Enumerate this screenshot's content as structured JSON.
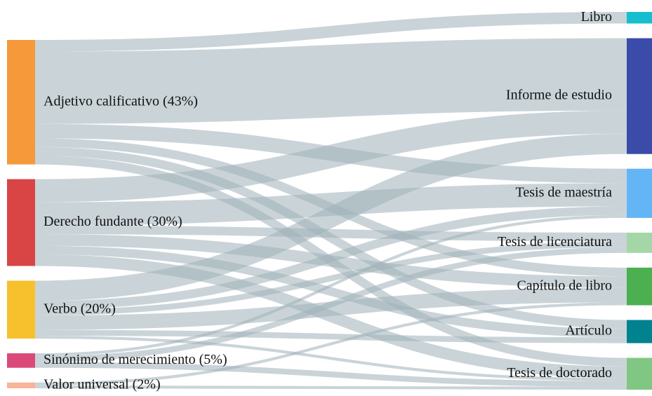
{
  "chart_data": {
    "type": "sankey",
    "nodes": [
      {
        "label": "Adjetivo calificativo (43%)",
        "color": "#f5993a",
        "column": 0
      },
      {
        "label": "Derecho fundante  (30%)",
        "color": "#d94545",
        "column": 0
      },
      {
        "label": "Verbo (20%)",
        "color": "#f7c12e",
        "column": 0
      },
      {
        "label": "Sinónimo de merecimiento (5%)",
        "color": "#d94a78",
        "column": 0
      },
      {
        "label": "Valor universal (2%)",
        "color": "#f9b39a",
        "column": 0
      },
      {
        "label": "Libro",
        "color": "#17becf",
        "column": 1
      },
      {
        "label": "Informe de estudio",
        "color": "#3a4baa",
        "column": 1
      },
      {
        "label": "Tesis de maestría",
        "color": "#64b5f6",
        "column": 1
      },
      {
        "label": "Tesis de licenciatura",
        "color": "#a5d6a7",
        "column": 1
      },
      {
        "label": "Capítulo de libro",
        "color": "#4caf50",
        "column": 1
      },
      {
        "label": "Artículo",
        "color": "#00838f",
        "column": 1
      },
      {
        "label": "Tesis de doctorado",
        "color": "#81c784",
        "column": 1
      }
    ],
    "link_color": "#9fb0b8",
    "links": [
      {
        "source": 0,
        "target": 5,
        "value": 4
      },
      {
        "source": 0,
        "target": 6,
        "value": 25
      },
      {
        "source": 0,
        "target": 7,
        "value": 5
      },
      {
        "source": 0,
        "target": 9,
        "value": 3
      },
      {
        "source": 0,
        "target": 10,
        "value": 3
      },
      {
        "source": 0,
        "target": 11,
        "value": 3
      },
      {
        "source": 1,
        "target": 6,
        "value": 8
      },
      {
        "source": 1,
        "target": 7,
        "value": 8
      },
      {
        "source": 1,
        "target": 8,
        "value": 3
      },
      {
        "source": 1,
        "target": 9,
        "value": 4
      },
      {
        "source": 1,
        "target": 10,
        "value": 3
      },
      {
        "source": 1,
        "target": 11,
        "value": 4
      },
      {
        "source": 2,
        "target": 6,
        "value": 7
      },
      {
        "source": 2,
        "target": 7,
        "value": 3
      },
      {
        "source": 2,
        "target": 8,
        "value": 2
      },
      {
        "source": 2,
        "target": 9,
        "value": 5
      },
      {
        "source": 2,
        "target": 10,
        "value": 2
      },
      {
        "source": 2,
        "target": 11,
        "value": 1
      },
      {
        "source": 3,
        "target": 7,
        "value": 1
      },
      {
        "source": 3,
        "target": 8,
        "value": 2
      },
      {
        "source": 3,
        "target": 11,
        "value": 2
      },
      {
        "source": 4,
        "target": 9,
        "value": 1
      },
      {
        "source": 4,
        "target": 11,
        "value": 1
      }
    ]
  }
}
